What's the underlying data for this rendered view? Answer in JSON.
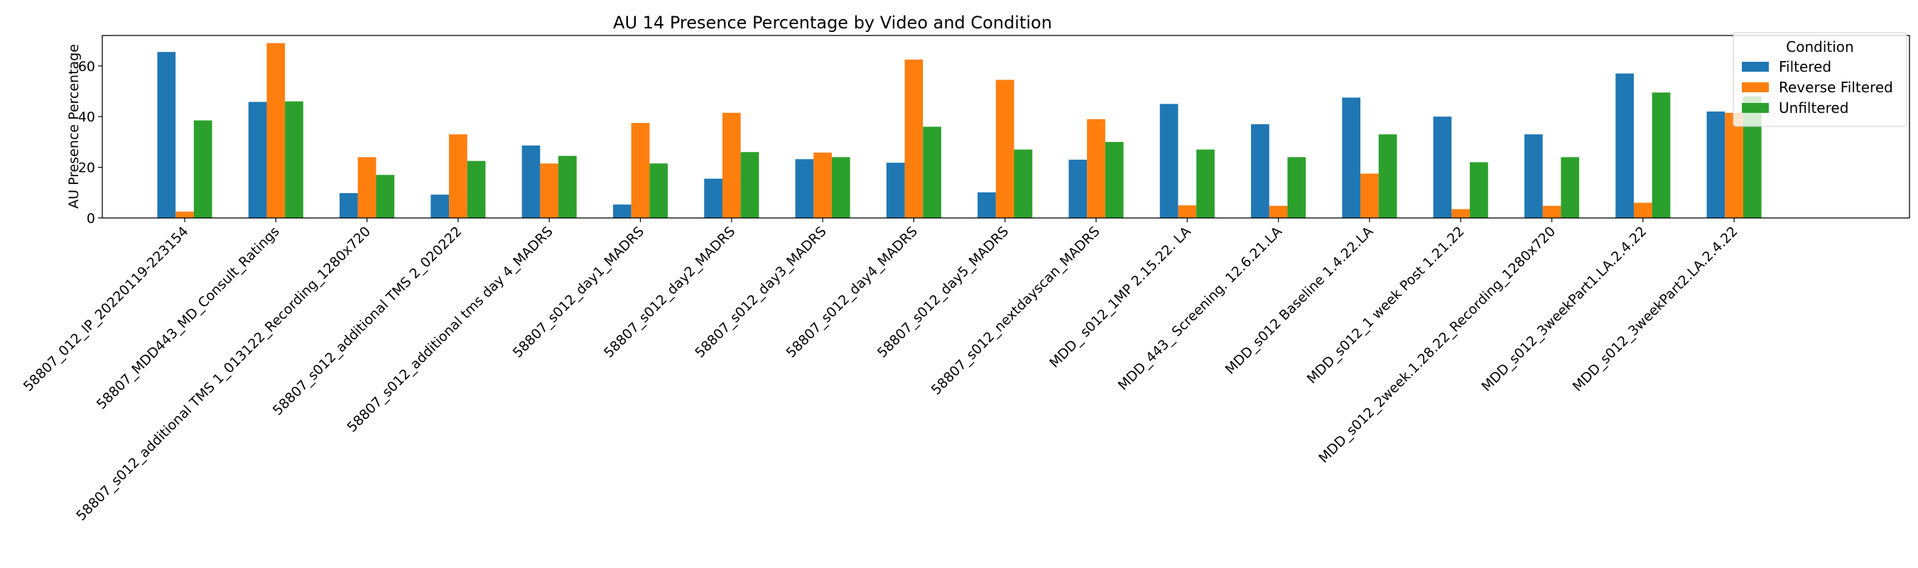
{
  "chart_data": {
    "type": "bar",
    "title": "AU 14 Presence Percentage by Video and Condition",
    "xlabel": "",
    "ylabel": "AU Presence Percentage",
    "ylim": [
      0,
      72
    ],
    "yticks": [
      0,
      20,
      40,
      60
    ],
    "grid": false,
    "legend": {
      "title": "Condition",
      "placement": "top-right"
    },
    "categories": [
      "58807_012_IP_20220119-223154",
      "58807_MDD443_MD_Consult_Ratings",
      "58807_s012_additional TMS 1_013122_Recording_1280x720",
      "58807_s012_additional TMS 2_020222",
      "58807_s012_additional tms day 4_MADRS",
      "58807_s012_day1_MADRS",
      "58807_s012_day2_MADRS",
      "58807_s012_day3_MADRS",
      "58807_s012_day4_MADRS",
      "58807_s012_day5_MADRS",
      "58807_s012_nextdayscan_MADRS",
      "MDD_ s012_1MP  2.15.22. LA",
      "MDD_443_ Screening. 12.6.21.LA",
      "MDD_s012 Baseline 1.4.22.LA",
      "MDD_s012_1 week Post 1.21.22",
      "MDD_s012_2week.1.28.22_Recording_1280x720",
      "MDD_s012_3weekPart1.LA.2.4.22",
      "MDD_s012_3weekPart2.LA.2.4.22"
    ],
    "series": [
      {
        "name": "Filtered",
        "color": "#1f77b4",
        "values": [
          65.5,
          45.8,
          9.8,
          9.2,
          28.6,
          5.3,
          15.5,
          23.2,
          21.8,
          10.1,
          23.0,
          45.0,
          37.0,
          47.5,
          40.0,
          33.0,
          57.0,
          42.0
        ]
      },
      {
        "name": "Reverse Filtered",
        "color": "#ff7f0e",
        "values": [
          2.5,
          69.0,
          24.0,
          33.0,
          21.5,
          37.5,
          41.5,
          25.8,
          62.5,
          54.5,
          39.0,
          5.0,
          4.8,
          17.5,
          3.5,
          4.8,
          6.0,
          41.5
        ]
      },
      {
        "name": "Unfiltered",
        "color": "#2ca02c",
        "values": [
          38.5,
          46.0,
          17.0,
          22.5,
          24.5,
          21.5,
          26.0,
          24.0,
          36.0,
          27.0,
          30.0,
          27.0,
          24.0,
          33.0,
          22.0,
          24.0,
          49.5,
          48.0
        ]
      }
    ]
  }
}
